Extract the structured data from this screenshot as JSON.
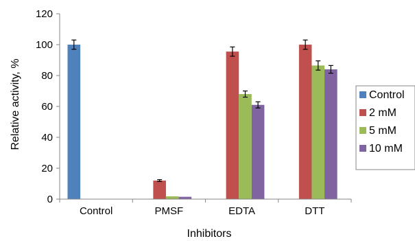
{
  "chart_data": {
    "type": "bar",
    "title": "",
    "xlabel": "Inhibitors",
    "ylabel": "Relative activity, %",
    "ylim": [
      0,
      120
    ],
    "yticks": [
      0,
      20,
      40,
      60,
      80,
      100,
      120
    ],
    "grid": false,
    "legend_position": "right",
    "categories": [
      "Control",
      "PMSF",
      "EDTA",
      "DTT"
    ],
    "series": [
      {
        "name": "Control",
        "color": "#4F81BD",
        "values": [
          100,
          null,
          null,
          null
        ],
        "errors": [
          3,
          null,
          null,
          null
        ]
      },
      {
        "name": "2 mM",
        "color": "#C0504D",
        "values": [
          null,
          12,
          95.5,
          100
        ],
        "errors": [
          null,
          0.6,
          3,
          3
        ]
      },
      {
        "name": "5 mM",
        "color": "#9BBB59",
        "values": [
          null,
          1.8,
          68,
          86.5
        ],
        "errors": [
          null,
          0,
          2,
          3
        ]
      },
      {
        "name": "10 mM",
        "color": "#8064A2",
        "values": [
          null,
          1.5,
          61,
          84
        ],
        "errors": [
          null,
          0,
          2,
          2.5
        ]
      }
    ]
  }
}
